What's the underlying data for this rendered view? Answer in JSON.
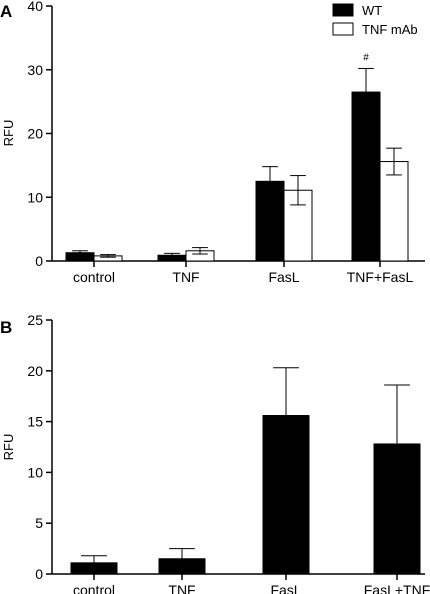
{
  "chart_data": [
    {
      "panel_label": "A",
      "type": "bar",
      "ylabel": "RFU",
      "ylim": [
        0,
        40
      ],
      "yticks": [
        "0",
        "10",
        "20",
        "30",
        "40"
      ],
      "categories": [
        "control",
        "TNF",
        "FasL",
        "TNF+FasL"
      ],
      "series": [
        {
          "name": "WT",
          "fill": "#000000",
          "values": [
            1.3,
            0.9,
            12.5,
            26.5
          ],
          "errors": [
            0.3,
            0.3,
            2.3,
            3.7
          ]
        },
        {
          "name": "TNF mAb",
          "fill": "#ffffff",
          "values": [
            0.8,
            1.6,
            11.1,
            15.6
          ],
          "errors": [
            0.2,
            0.5,
            2.3,
            2.1
          ]
        }
      ],
      "annotations": [
        {
          "text": "#",
          "category": "TNF+FasL",
          "series": "WT"
        }
      ],
      "legend_position": "top-right"
    },
    {
      "panel_label": "B",
      "type": "bar",
      "ylabel": "RFU",
      "ylim": [
        0,
        25
      ],
      "yticks": [
        "0",
        "5",
        "10",
        "15",
        "20",
        "25"
      ],
      "categories": [
        "control",
        "TNF",
        "FasL",
        "FasL+TNF"
      ],
      "series": [
        {
          "name": "",
          "fill": "#000000",
          "values": [
            1.1,
            1.5,
            15.6,
            12.8
          ],
          "errors": [
            0.7,
            1.0,
            4.7,
            5.8
          ]
        }
      ]
    }
  ]
}
